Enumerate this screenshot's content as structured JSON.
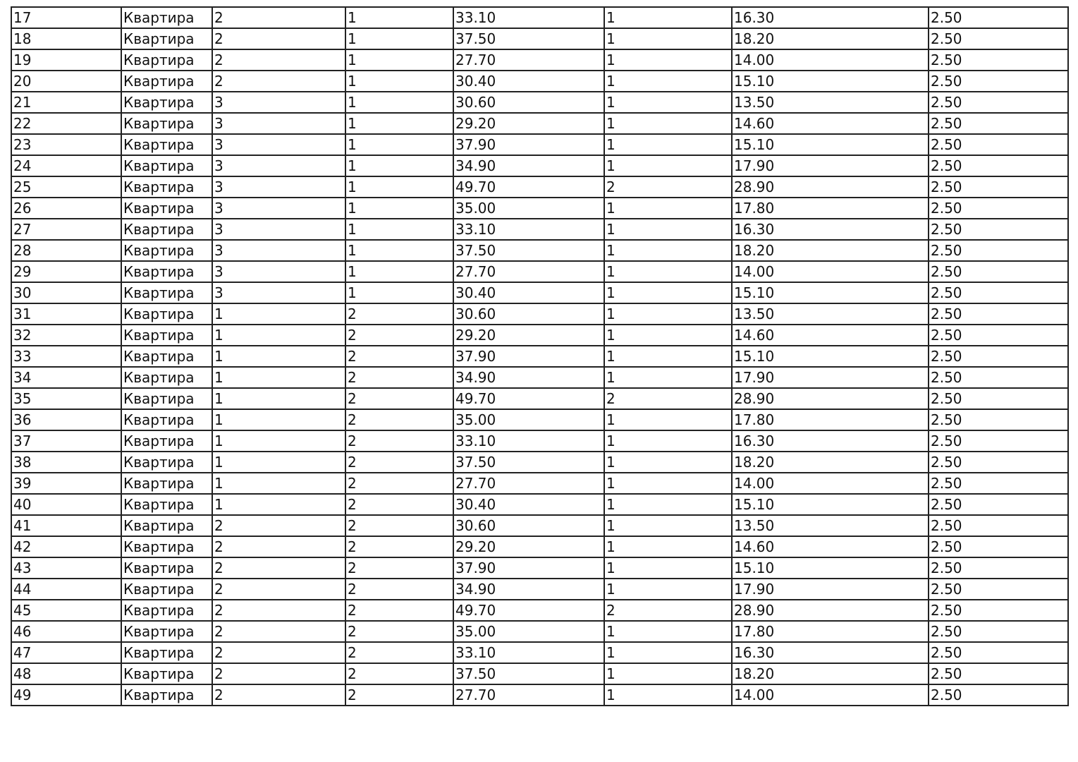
{
  "table": {
    "rows": [
      [
        "17",
        "Квартира",
        "2",
        "1",
        "33.10",
        "1",
        "16.30",
        "2.50"
      ],
      [
        "18",
        "Квартира",
        "2",
        "1",
        "37.50",
        "1",
        "18.20",
        "2.50"
      ],
      [
        "19",
        "Квартира",
        "2",
        "1",
        "27.70",
        "1",
        "14.00",
        "2.50"
      ],
      [
        "20",
        "Квартира",
        "2",
        "1",
        "30.40",
        "1",
        "15.10",
        "2.50"
      ],
      [
        "21",
        "Квартира",
        "3",
        "1",
        "30.60",
        "1",
        "13.50",
        "2.50"
      ],
      [
        "22",
        "Квартира",
        "3",
        "1",
        "29.20",
        "1",
        "14.60",
        "2.50"
      ],
      [
        "23",
        "Квартира",
        "3",
        "1",
        "37.90",
        "1",
        "15.10",
        "2.50"
      ],
      [
        "24",
        "Квартира",
        "3",
        "1",
        "34.90",
        "1",
        "17.90",
        "2.50"
      ],
      [
        "25",
        "Квартира",
        "3",
        "1",
        "49.70",
        "2",
        "28.90",
        "2.50"
      ],
      [
        "26",
        "Квартира",
        "3",
        "1",
        "35.00",
        "1",
        "17.80",
        "2.50"
      ],
      [
        "27",
        "Квартира",
        "3",
        "1",
        "33.10",
        "1",
        "16.30",
        "2.50"
      ],
      [
        "28",
        "Квартира",
        "3",
        "1",
        "37.50",
        "1",
        "18.20",
        "2.50"
      ],
      [
        "29",
        "Квартира",
        "3",
        "1",
        "27.70",
        "1",
        "14.00",
        "2.50"
      ],
      [
        "30",
        "Квартира",
        "3",
        "1",
        "30.40",
        "1",
        "15.10",
        "2.50"
      ],
      [
        "31",
        "Квартира",
        "1",
        "2",
        "30.60",
        "1",
        "13.50",
        "2.50"
      ],
      [
        "32",
        "Квартира",
        "1",
        "2",
        "29.20",
        "1",
        "14.60",
        "2.50"
      ],
      [
        "33",
        "Квартира",
        "1",
        "2",
        "37.90",
        "1",
        "15.10",
        "2.50"
      ],
      [
        "34",
        "Квартира",
        "1",
        "2",
        "34.90",
        "1",
        "17.90",
        "2.50"
      ],
      [
        "35",
        "Квартира",
        "1",
        "2",
        "49.70",
        "2",
        "28.90",
        "2.50"
      ],
      [
        "36",
        "Квартира",
        "1",
        "2",
        "35.00",
        "1",
        "17.80",
        "2.50"
      ],
      [
        "37",
        "Квартира",
        "1",
        "2",
        "33.10",
        "1",
        "16.30",
        "2.50"
      ],
      [
        "38",
        "Квартира",
        "1",
        "2",
        "37.50",
        "1",
        "18.20",
        "2.50"
      ],
      [
        "39",
        "Квартира",
        "1",
        "2",
        "27.70",
        "1",
        "14.00",
        "2.50"
      ],
      [
        "40",
        "Квартира",
        "1",
        "2",
        "30.40",
        "1",
        "15.10",
        "2.50"
      ],
      [
        "41",
        "Квартира",
        "2",
        "2",
        "30.60",
        "1",
        "13.50",
        "2.50"
      ],
      [
        "42",
        "Квартира",
        "2",
        "2",
        "29.20",
        "1",
        "14.60",
        "2.50"
      ],
      [
        "43",
        "Квартира",
        "2",
        "2",
        "37.90",
        "1",
        "15.10",
        "2.50"
      ],
      [
        "44",
        "Квартира",
        "2",
        "2",
        "34.90",
        "1",
        "17.90",
        "2.50"
      ],
      [
        "45",
        "Квартира",
        "2",
        "2",
        "49.70",
        "2",
        "28.90",
        "2.50"
      ],
      [
        "46",
        "Квартира",
        "2",
        "2",
        "35.00",
        "1",
        "17.80",
        "2.50"
      ],
      [
        "47",
        "Квартира",
        "2",
        "2",
        "33.10",
        "1",
        "16.30",
        "2.50"
      ],
      [
        "48",
        "Квартира",
        "2",
        "2",
        "37.50",
        "1",
        "18.20",
        "2.50"
      ],
      [
        "49",
        "Квартира",
        "2",
        "2",
        "27.70",
        "1",
        "14.00",
        "2.50"
      ]
    ]
  }
}
